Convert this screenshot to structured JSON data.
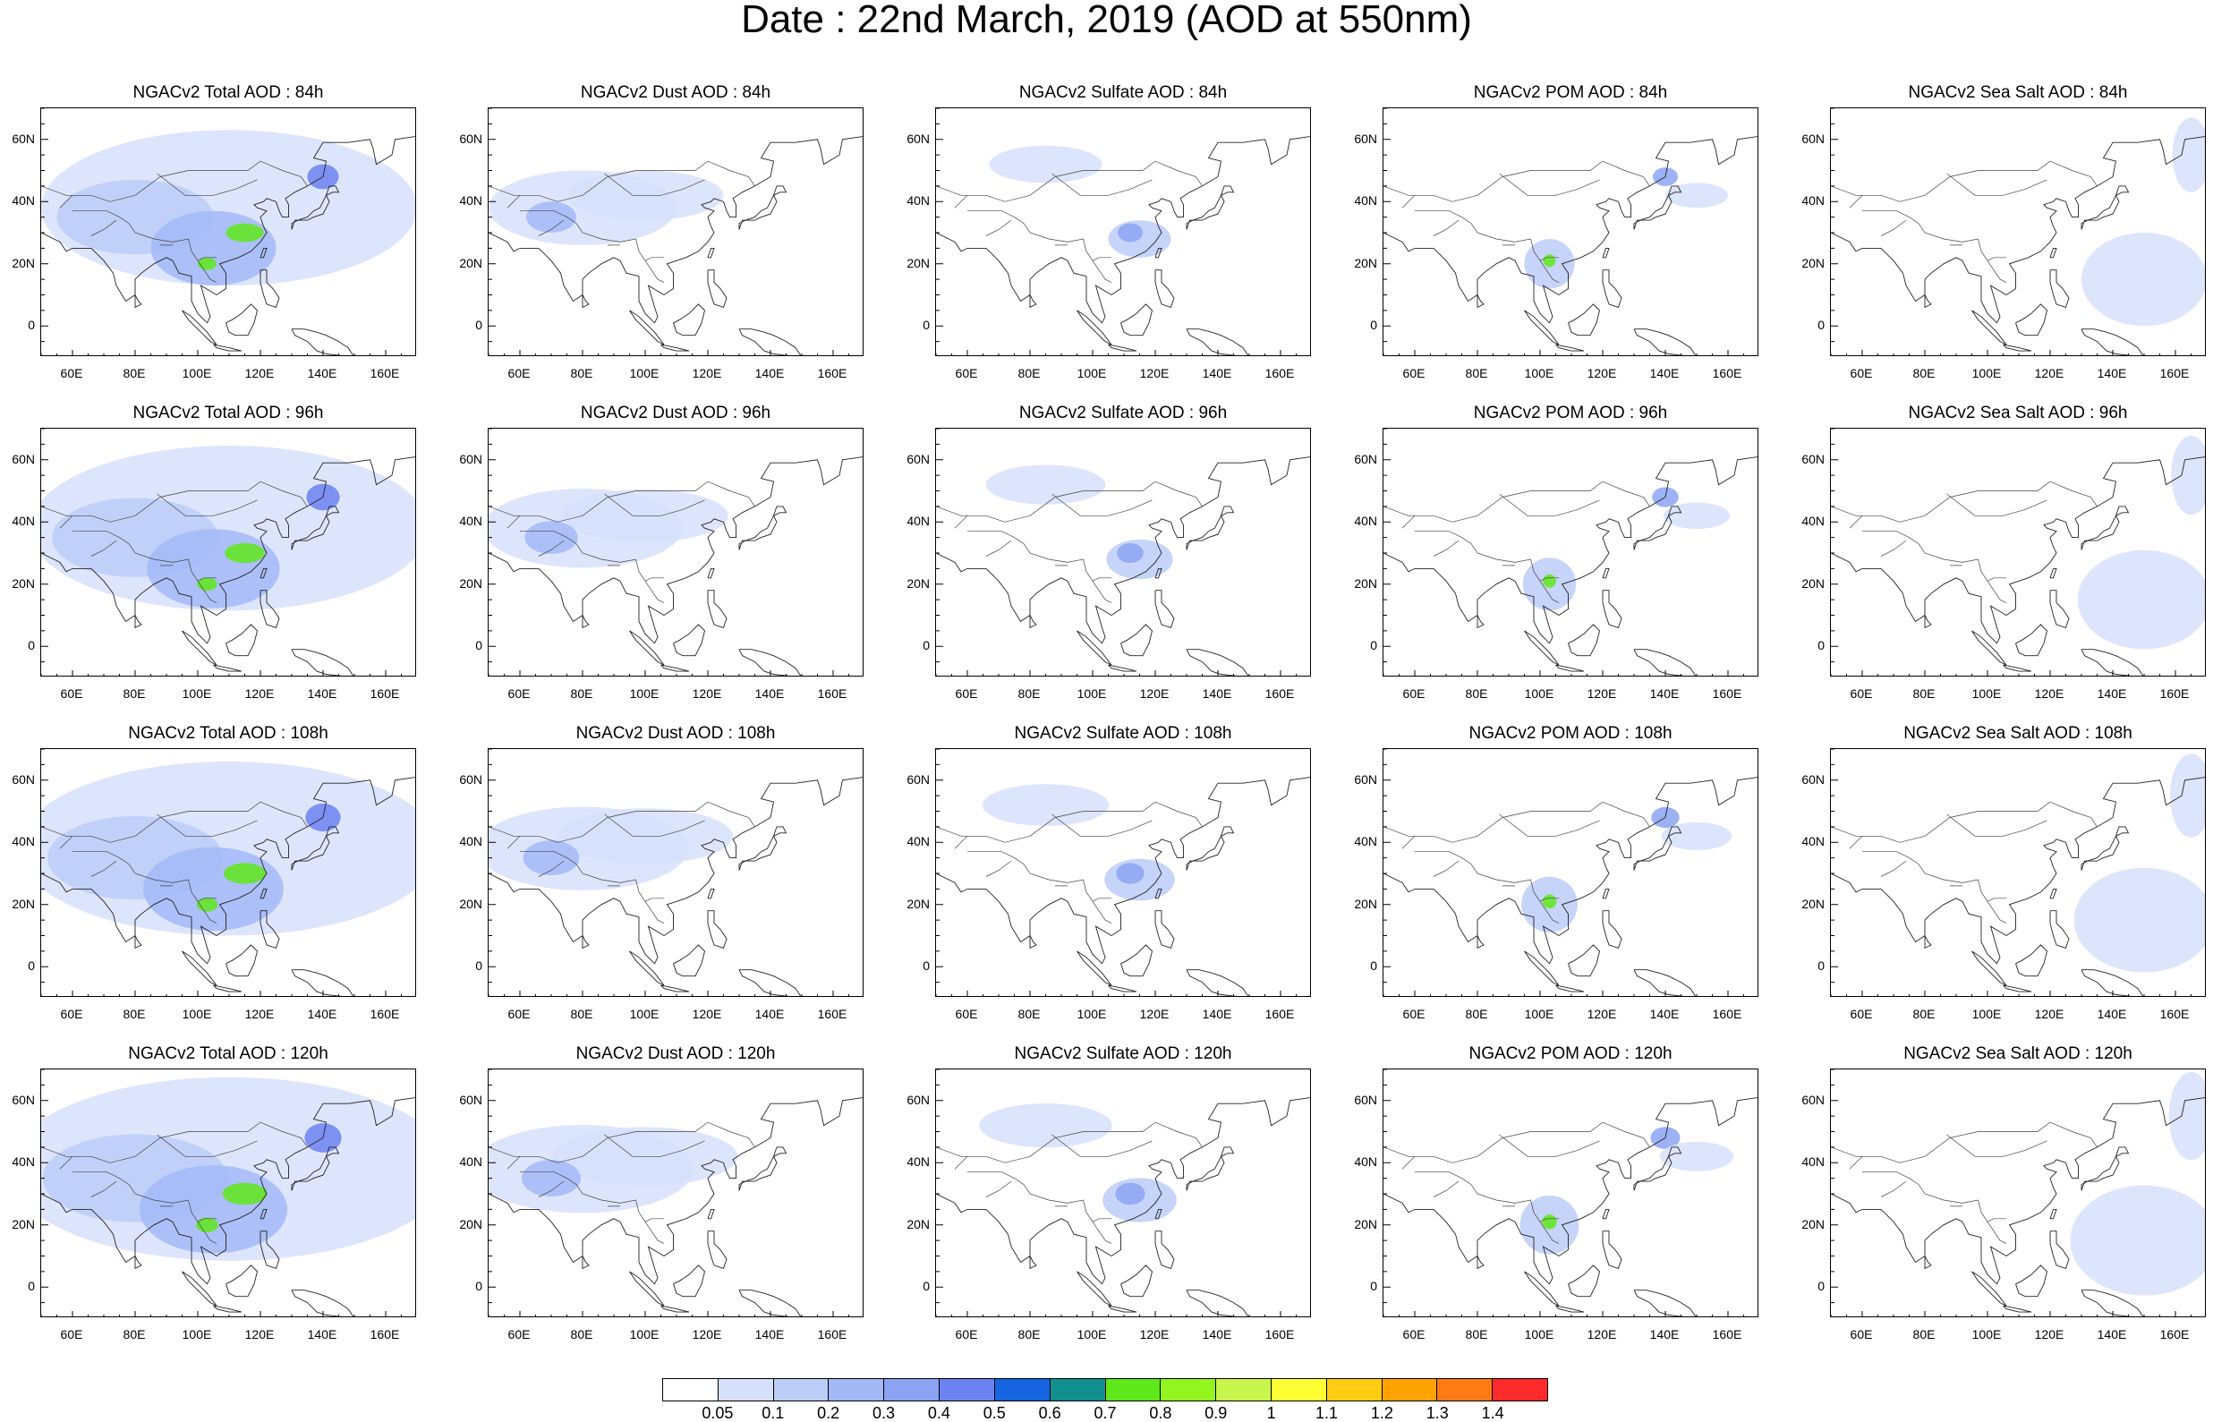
{
  "title": "Date : 22nd March, 2019 (AOD at 550nm)",
  "panels": [
    [
      "NGACv2 Total AOD : 84h",
      "NGACv2 Dust AOD : 84h",
      "NGACv2 Sulfate AOD : 84h",
      "NGACv2 POM AOD : 84h",
      "NGACv2 Sea Salt AOD : 84h"
    ],
    [
      "NGACv2 Total AOD : 96h",
      "NGACv2 Dust AOD : 96h",
      "NGACv2 Sulfate AOD : 96h",
      "NGACv2 POM AOD : 96h",
      "NGACv2 Sea Salt AOD : 96h"
    ],
    [
      "NGACv2 Total AOD : 108h",
      "NGACv2 Dust AOD : 108h",
      "NGACv2 Sulfate AOD : 108h",
      "NGACv2 POM AOD : 108h",
      "NGACv2 Sea Salt AOD : 108h"
    ],
    [
      "NGACv2 Total AOD : 120h",
      "NGACv2 Dust AOD : 120h",
      "NGACv2 Sulfate AOD : 120h",
      "NGACv2 POM AOD : 120h",
      "NGACv2 Sea Salt  AOD : 120h"
    ]
  ],
  "axes": {
    "lat_ticks": [
      "60N",
      "40N",
      "20N",
      "0"
    ],
    "lon_ticks": [
      "60E",
      "80E",
      "100E",
      "120E",
      "140E",
      "160E"
    ]
  },
  "colorbar": {
    "labels": [
      "0.05",
      "0.1",
      "0.2",
      "0.3",
      "0.4",
      "0.5",
      "0.6",
      "0.7",
      "0.8",
      "0.9",
      "1",
      "1.1",
      "1.2",
      "1.3",
      "1.4"
    ],
    "colors": [
      "#ffffff",
      "#d6e0fb",
      "#bccdf8",
      "#a3b8f7",
      "#8ca3f3",
      "#6c82f1",
      "#1565e3",
      "#118f8f",
      "#5fe81a",
      "#92f51e",
      "#c8f54c",
      "#ffff33",
      "#ffcc11",
      "#ffa300",
      "#ff7a14",
      "#ff2a2a"
    ]
  }
}
